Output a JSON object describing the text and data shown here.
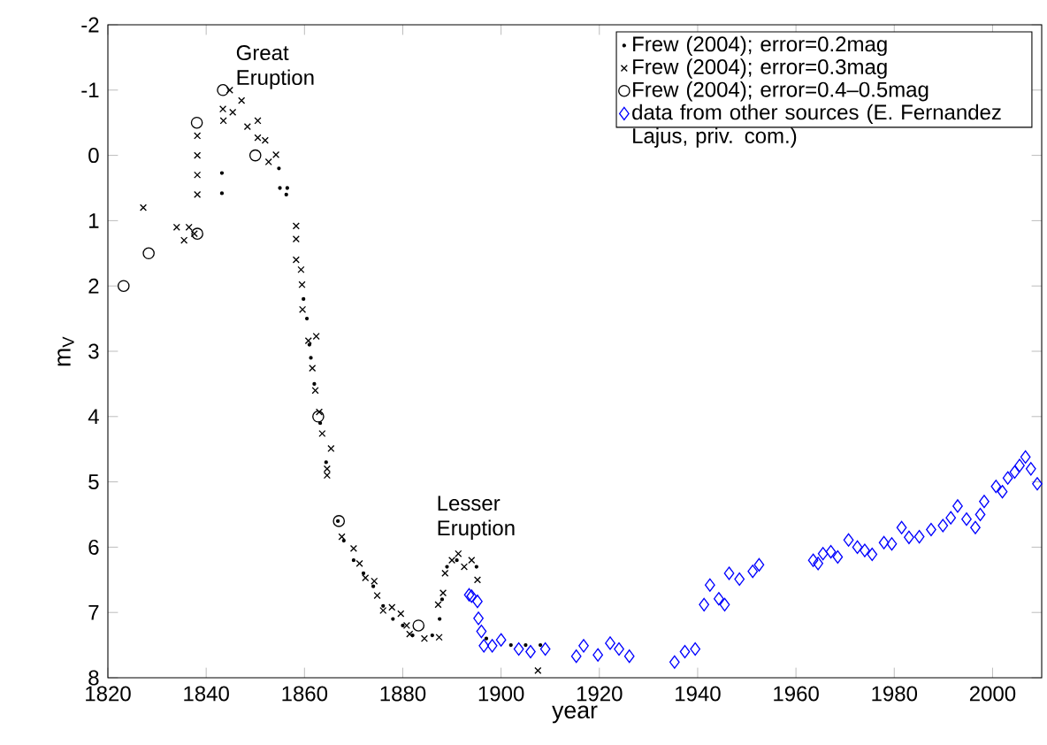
{
  "chart_data": {
    "type": "scatter",
    "xlabel": "year",
    "ylabel": "m$_{V}$",
    "xlim": [
      1820,
      2010
    ],
    "ylim": [
      8,
      -2
    ],
    "xticks": [
      1820,
      1840,
      1860,
      1880,
      1900,
      1920,
      1940,
      1960,
      1980,
      2000
    ],
    "yticks": [
      -2,
      -1,
      0,
      1,
      2,
      3,
      4,
      5,
      6,
      7,
      8
    ],
    "legend": "top right",
    "annotations": [
      "Great Eruption",
      "Lesser Eruption"
    ],
    "series": [
      {
        "name": "Frew (2004); error=0.2mag",
        "color": "#000000",
        "marker": "dot",
        "x": [
          1843.2,
          1843.2,
          1854.8,
          1855,
          1856.5,
          1856.3,
          1859.8,
          1860.5,
          1861,
          1861.3,
          1862,
          1863.2,
          1864.4,
          1866.8,
          1868,
          1870,
          1872,
          1874,
          1876,
          1878,
          1880,
          1882,
          1884,
          1886,
          1887.5,
          1888,
          1889,
          1891,
          1893,
          1895,
          1897,
          1899,
          1902,
          1905,
          1908
        ],
        "values": [
          0.27,
          0.58,
          0.2,
          0.5,
          0.5,
          0.6,
          2.2,
          2.5,
          2.9,
          3.1,
          3.5,
          4.1,
          4.7,
          5.6,
          5.9,
          6.2,
          6.4,
          6.6,
          6.9,
          7.1,
          7.2,
          7.35,
          null,
          7.35,
          7.1,
          6.8,
          6.3,
          6.2,
          null,
          6.3,
          7.4,
          null,
          7.5,
          7.5,
          7.5
        ]
      },
      {
        "name": "Frew (2004); error=0.3mag",
        "color": "#000000",
        "marker": "cross",
        "x": [
          1827.2,
          1834,
          1835.5,
          1836.5,
          1837.6,
          1838.2,
          1838.2,
          1838.2,
          1838.2,
          1843.4,
          1843.5,
          1844.8,
          1845.4,
          1847.2,
          1848.4,
          1850.5,
          1850.5,
          1852,
          1852.7,
          1854.2,
          1858.3,
          1858.3,
          1858.3,
          1859.3,
          1859.5,
          1859.6,
          1860.8,
          1862.4,
          1861.6,
          1862.2,
          1863,
          1863.6,
          1865.4,
          1864.6,
          1864.6,
          1867.6,
          1870,
          1871.2,
          1872.4,
          1874.2,
          1874.8,
          1876,
          1877.8,
          1879.6,
          1880.8,
          1881.4,
          1884.4,
          1887.4,
          1887.2,
          1888.2,
          1888.6,
          1890,
          1891.3,
          1892.5,
          1894,
          1895.2,
          1907.5
        ],
        "values": [
          0.8,
          1.1,
          1.3,
          1.1,
          1.2,
          -0.3,
          0,
          0.3,
          0.6,
          -0.71,
          -0.53,
          -1.0,
          -0.66,
          -0.84,
          -0.44,
          -0.53,
          -0.27,
          -0.23,
          0.1,
          -0.01,
          1.08,
          1.28,
          1.6,
          1.75,
          1.98,
          2.36,
          2.84,
          2.77,
          3.26,
          3.6,
          3.93,
          4.26,
          4.49,
          4.8,
          4.9,
          5.84,
          6.02,
          6.25,
          6.47,
          6.52,
          6.74,
          6.97,
          6.92,
          7.02,
          7.2,
          7.33,
          7.4,
          7.38,
          6.88,
          6.7,
          6.4,
          6.2,
          6.1,
          6.3,
          6.2,
          6.5,
          7.89
        ]
      },
      {
        "name": "Frew (2004); error=0.4–0.5mag",
        "color": "#000000",
        "marker": "circle",
        "x": [
          1823.2,
          1828.3,
          1838.2,
          1838.1,
          1843.4,
          1850,
          1862.8,
          1867,
          1883.2
        ],
        "values": [
          2.0,
          1.5,
          1.2,
          -0.5,
          -1.0,
          0.0,
          4.0,
          5.6,
          7.2
        ]
      },
      {
        "name": "data from other sources (E. Fernandez Lajus, priv. com.)",
        "color": "#0000ff",
        "marker": "diamond",
        "x": [
          1893.5,
          1894,
          1895.2,
          1895.4,
          1896,
          1896.5,
          1898.2,
          1900,
          1903.6,
          1906,
          1909,
          1915.3,
          1916.8,
          1919.7,
          1922.2,
          1924,
          1926.1,
          1935.3,
          1937.4,
          1939.5,
          1941.3,
          1942.5,
          1944.3,
          1945.5,
          1946.4,
          1948.5,
          1951.2,
          1952.5,
          1963.5,
          1964.5,
          1965.5,
          1967.1,
          1968.5,
          1970.7,
          1972.5,
          1974,
          1975.5,
          1977.9,
          1979.5,
          1981.5,
          1983,
          1985.1,
          1987.5,
          1989.9,
          1991.5,
          1992.9,
          1994.7,
          1996.5,
          1997.5,
          1998.3,
          2000.7,
          2002,
          2003.1,
          2004.5,
          2005.5,
          2006.7,
          2007.8,
          2009.1
        ],
        "values": [
          6.73,
          6.75,
          6.83,
          7.09,
          7.29,
          7.51,
          7.51,
          7.42,
          7.56,
          7.6,
          7.56,
          7.67,
          7.51,
          7.65,
          7.47,
          7.56,
          7.67,
          7.76,
          7.6,
          7.56,
          6.88,
          6.58,
          6.79,
          6.88,
          6.4,
          6.49,
          6.37,
          6.27,
          6.2,
          6.25,
          6.1,
          6.07,
          6.15,
          5.89,
          6.0,
          6.05,
          6.11,
          5.93,
          5.95,
          5.7,
          5.85,
          5.84,
          5.73,
          5.67,
          5.55,
          5.37,
          5.57,
          5.7,
          5.5,
          5.3,
          5.07,
          5.15,
          4.94,
          4.85,
          4.75,
          4.62,
          4.8,
          5.03
        ]
      }
    ]
  }
}
